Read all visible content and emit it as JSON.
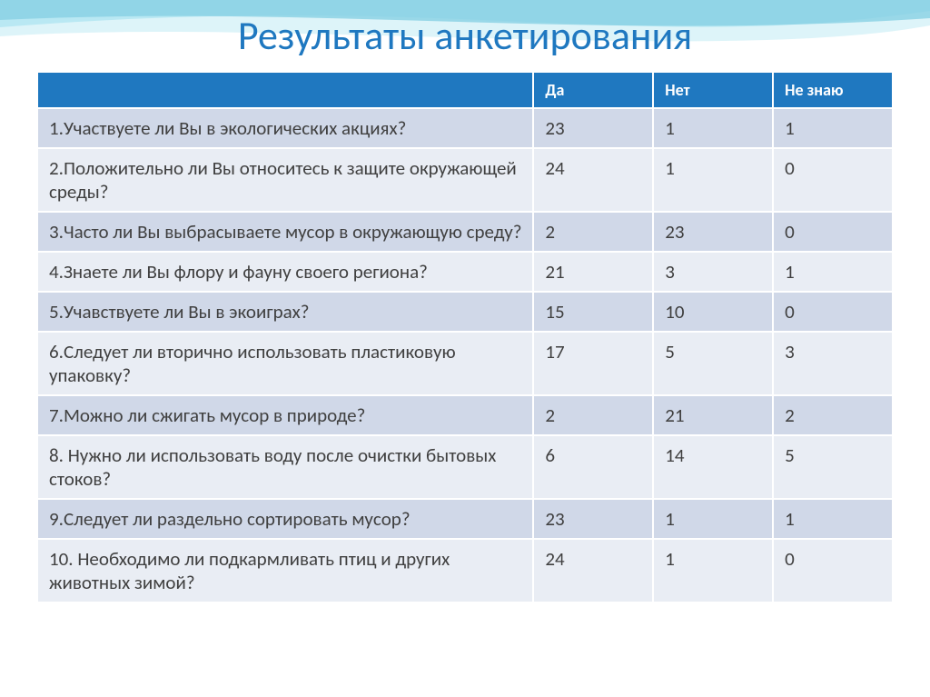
{
  "title": "Результаты анкетирования",
  "title_color": "#1f78c0",
  "table": {
    "header_bg": "#1f78c0",
    "header_fg": "#ffffff",
    "row_odd_bg": "#d0d8e8",
    "row_even_bg": "#e9edf4",
    "cell_fg": "#404040",
    "columns": [
      "",
      "Да",
      "Нет",
      "Не знаю"
    ],
    "rows": [
      [
        "1.Участвуете ли Вы в экологических акциях?",
        "23",
        "1",
        "1"
      ],
      [
        "2.Положительно ли Вы относитесь к защите окружающей среды?",
        "24",
        "1",
        "0"
      ],
      [
        "3.Часто ли Вы выбрасываете мусор в окружающую среду?",
        "2",
        "23",
        "0"
      ],
      [
        "4.Знаете ли Вы флору и фауну своего региона?",
        "21",
        "3",
        "1"
      ],
      [
        "5.Учавствуете ли Вы в экоиграх?",
        "15",
        "10",
        "0"
      ],
      [
        "6.Следует ли вторично использовать пластиковую упаковку?",
        "17",
        "5",
        "3"
      ],
      [
        "7.Можно ли сжигать мусор в природе?",
        "2",
        "21",
        "2"
      ],
      [
        "8. Нужно ли использовать воду после очистки бытовых стоков?",
        "6",
        "14",
        "5"
      ],
      [
        "9.Следует ли раздельно сортировать мусор?",
        "23",
        "1",
        "1"
      ],
      [
        "10. Необходимо ли подкармливать птиц и других животных зимой?",
        "24",
        "1",
        "0"
      ]
    ]
  },
  "background": {
    "wave_colors": [
      "#7fd4e8",
      "#2aa6c9",
      "#c7ecf5"
    ]
  }
}
